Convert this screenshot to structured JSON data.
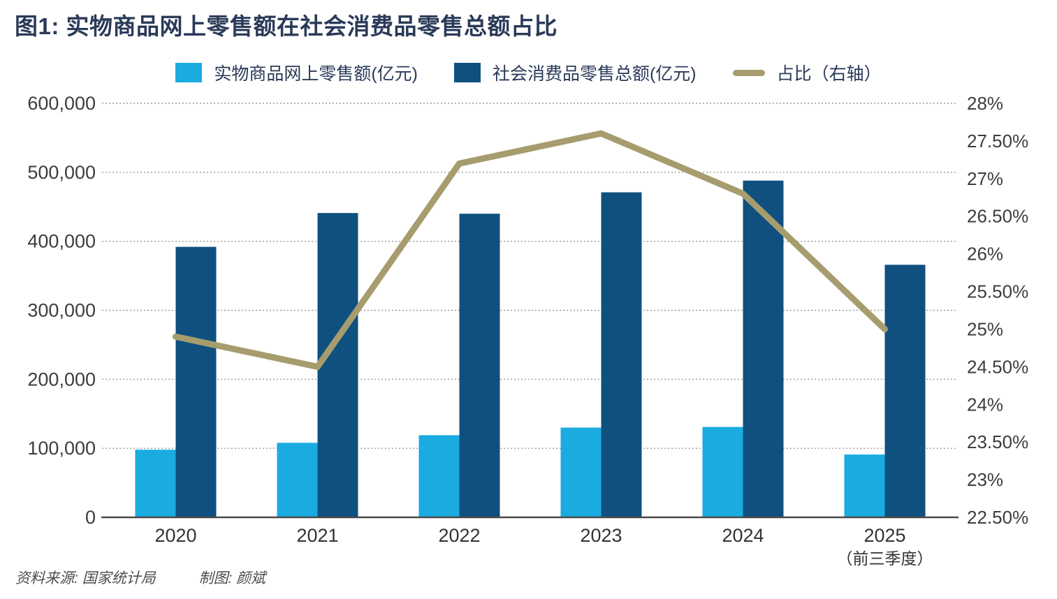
{
  "title": "图1: 实物商品网上零售额在社会消费品零售总额占比",
  "legend": [
    {
      "label": "实物商品网上零售额(亿元)",
      "marker": "square",
      "color_key": "light_blue"
    },
    {
      "label": "社会消费品零售总额(亿元)",
      "marker": "square",
      "color_key": "dark_blue"
    },
    {
      "label": "占比（右轴）",
      "marker": "line",
      "color_key": "line_khaki"
    }
  ],
  "footer": {
    "source": "资料来源: 国家统计局",
    "credit": "制图: 颜斌"
  },
  "colors": {
    "light_blue": "#1aabe1",
    "dark_blue": "#0f507f",
    "line_khaki": "#a79c6e",
    "title_text": "#2a3a58",
    "axis_text": "#3d3d3d",
    "x_label_text": "#333333",
    "grid": "#9b9b9b",
    "baseline": "#4a4a4a",
    "footer_text": "#4c4c4c"
  },
  "chart_data": {
    "type": "bar+line",
    "title": "图1: 实物商品网上零售额在社会消费品零售总额占比",
    "categories": [
      "2020",
      "2021",
      "2022",
      "2023",
      "2024",
      "2025"
    ],
    "x_sub_labels": [
      "",
      "",
      "",
      "",
      "",
      "（前三季度）"
    ],
    "series": [
      {
        "name": "实物商品网上零售额(亿元)",
        "type": "bar",
        "axis": "left",
        "color_key": "light_blue",
        "values": [
          98000,
          108000,
          119000,
          130000,
          131000,
          91000
        ]
      },
      {
        "name": "社会消费品零售总额(亿元)",
        "type": "bar",
        "axis": "left",
        "color_key": "dark_blue",
        "values": [
          392000,
          441000,
          440000,
          471000,
          488000,
          366000
        ]
      },
      {
        "name": "占比（右轴）",
        "type": "line",
        "axis": "right",
        "color_key": "line_khaki",
        "values": [
          24.9,
          24.5,
          27.2,
          27.6,
          26.8,
          25.0
        ]
      }
    ],
    "left_axis": {
      "min": 0,
      "max": 600000,
      "ticks": [
        "600,000",
        "500,000",
        "400,000",
        "300,000",
        "200,000",
        "100,000",
        "0"
      ]
    },
    "right_axis": {
      "min": 22.5,
      "max": 28,
      "ticks": [
        "28%",
        "27.50%",
        "27%",
        "26.50%",
        "26%",
        "25.50%",
        "25%",
        "24.50%",
        "24%",
        "23.50%",
        "23%",
        "22.50%"
      ]
    },
    "grid": true,
    "legend_position": "top"
  }
}
